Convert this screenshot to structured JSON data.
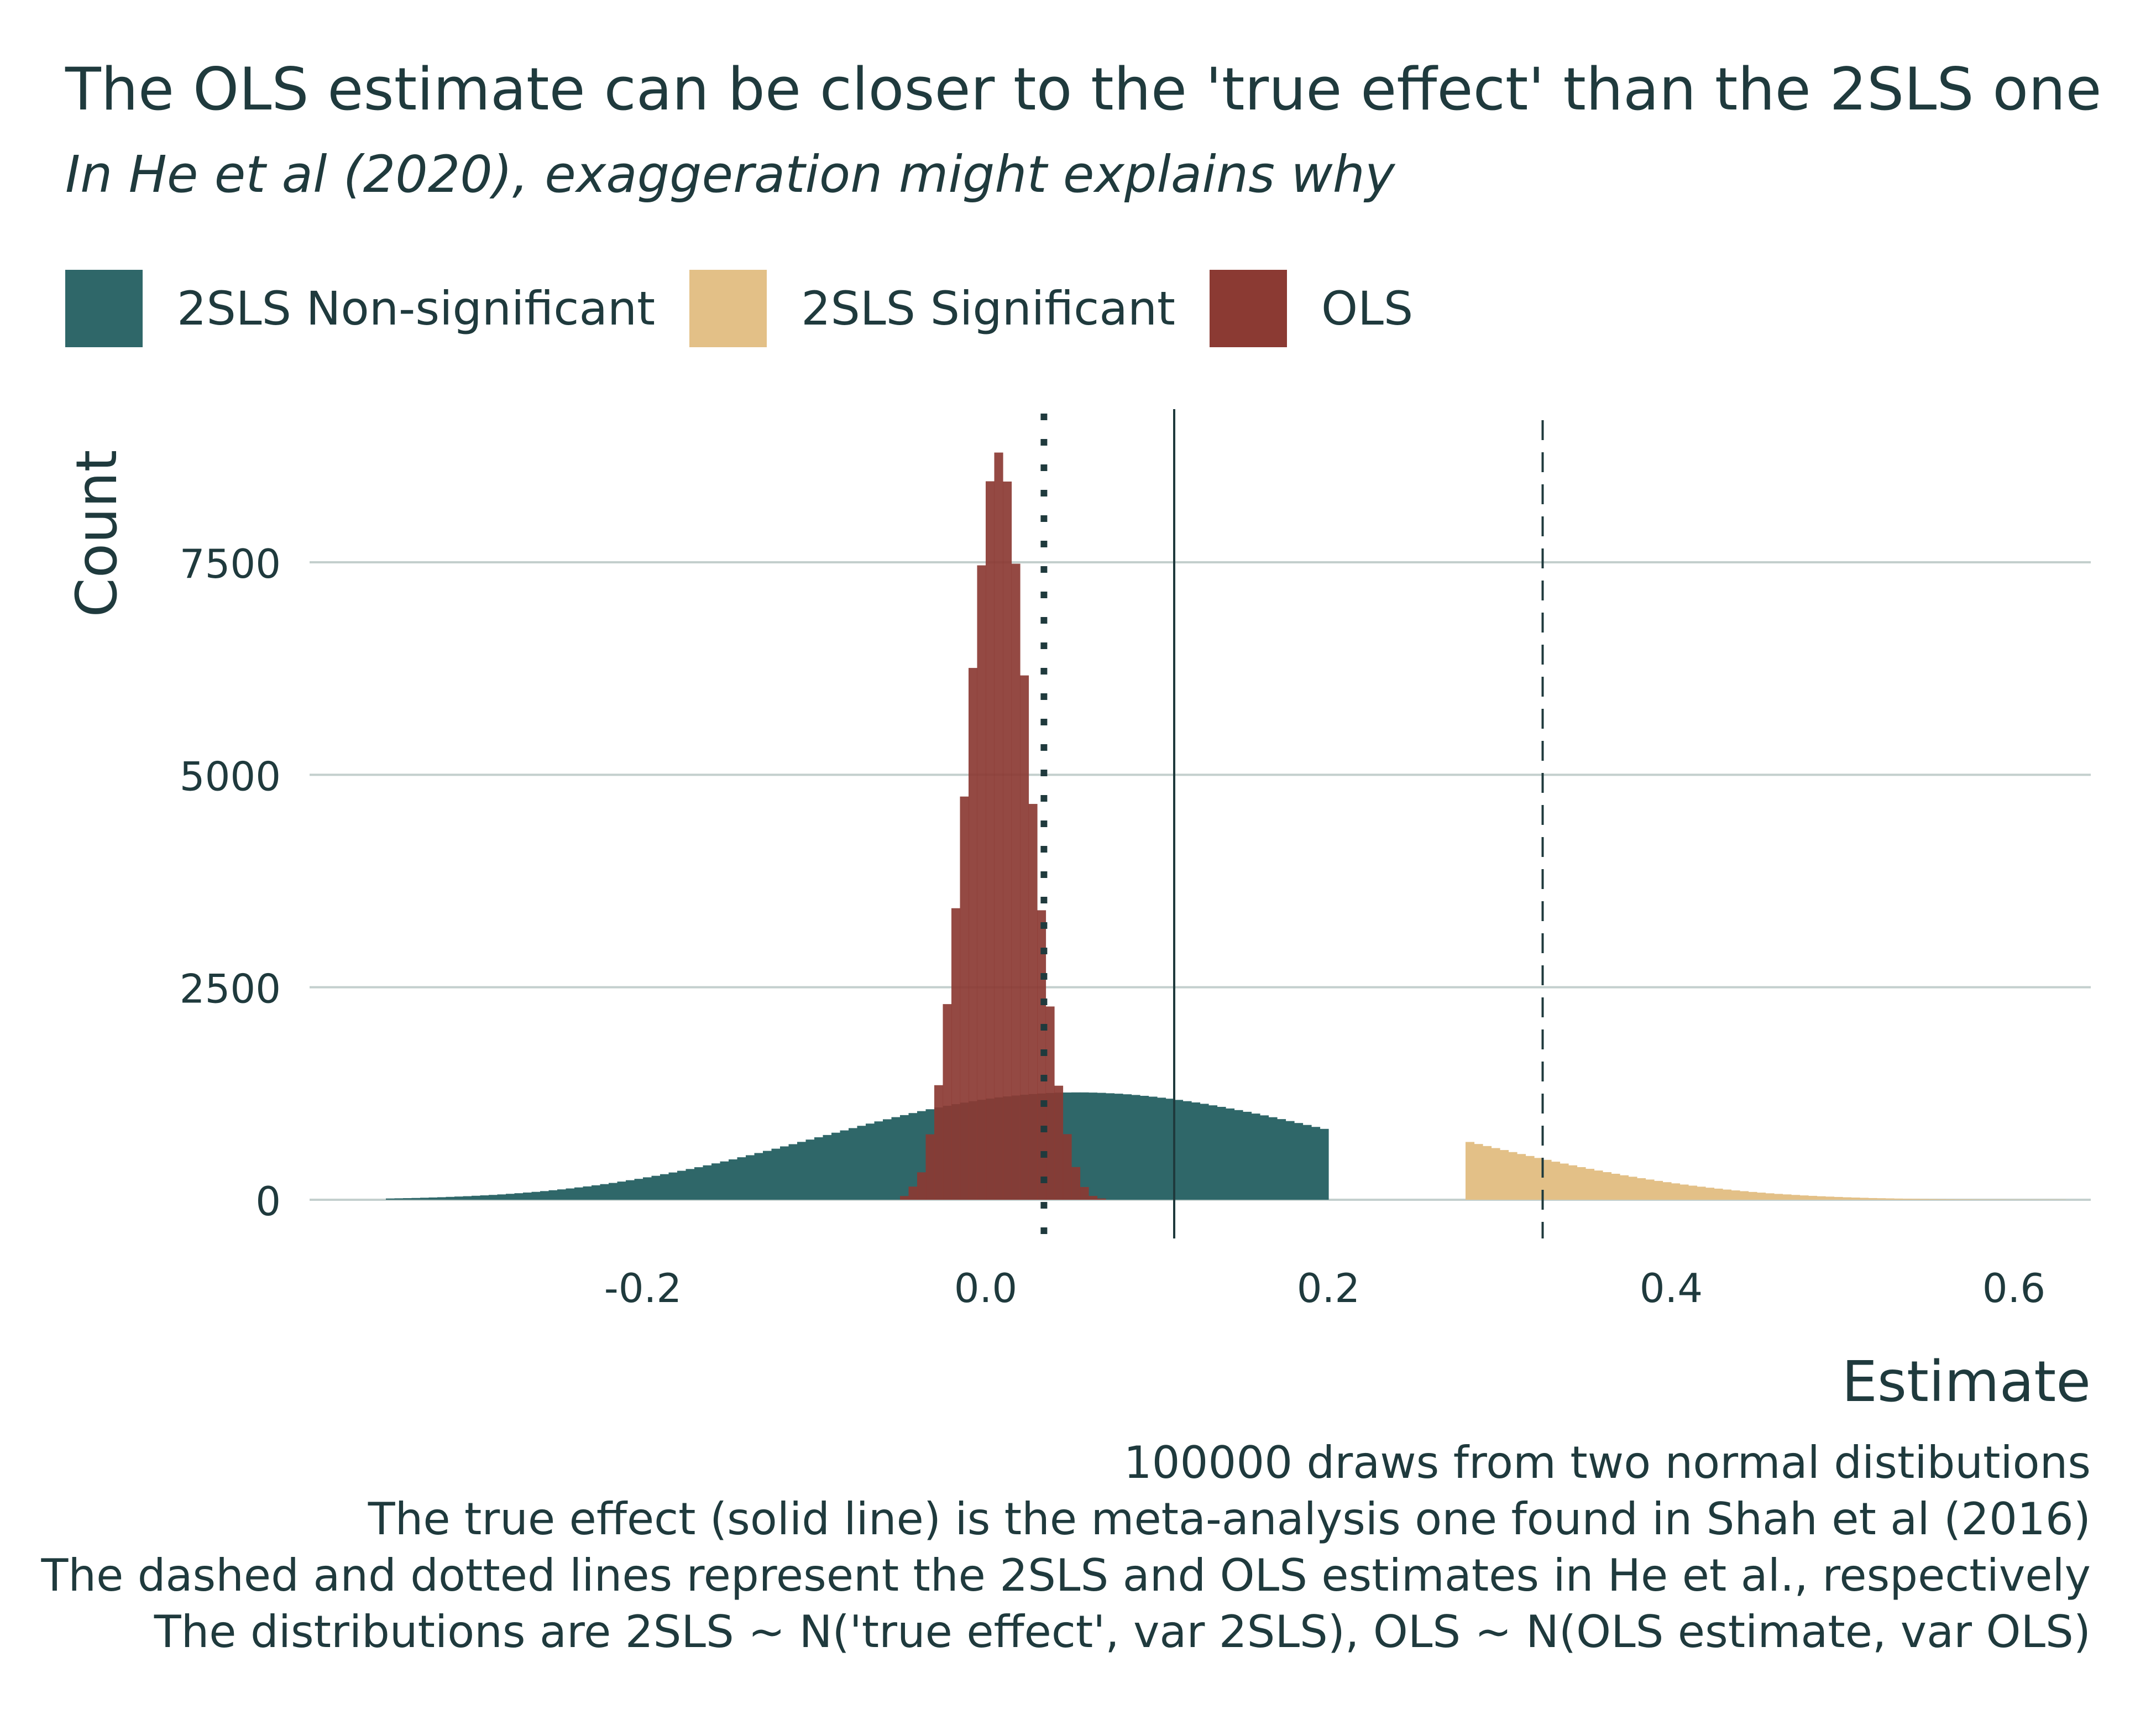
{
  "title": "The OLS estimate can be closer to the 'true effect' than the 2SLS one",
  "subtitle": "In He et al (2020), exaggeration might explains why",
  "legend": [
    {
      "label": "2SLS Non-significant",
      "color": "#2f6769"
    },
    {
      "label": "2SLS Significant",
      "color": "#e3c087"
    },
    {
      "label": "OLS",
      "color": "#8b3a33"
    }
  ],
  "caption": [
    "100000 draws from two normal distibutions",
    "The true effect (solid line) is the meta-analysis one found in Shah et al (2016)",
    "The dashed and dotted lines represent the 2SLS and OLS estimates in He et al., respectively",
    "The distributions are 2SLS ~ N('true effect', var 2SLS), OLS ~ N(OLS estimate, var OLS)"
  ],
  "chart_data": {
    "type": "bar",
    "xlabel": "Estimate",
    "ylabel": "Count",
    "xlim": [
      -0.39,
      0.65
    ],
    "ylim": [
      0,
      9500
    ],
    "xticks": [
      "-0.2",
      "0.0",
      "0.2",
      "0.4",
      "0.6"
    ],
    "xtick_values": [
      -0.2,
      0.0,
      0.2,
      0.4,
      0.6
    ],
    "yticks": [
      "0",
      "2500",
      "5000",
      "7500"
    ],
    "ytick_values": [
      0,
      2500,
      5000,
      7500
    ],
    "grid": "horizontal",
    "legend_position": "top-left",
    "vertical_lines": [
      {
        "name": "true effect",
        "x": 0.11,
        "style": "solid"
      },
      {
        "name": "2SLS estimate",
        "x": 0.325,
        "style": "dashed"
      },
      {
        "name": "OLS estimate",
        "x": 0.034,
        "style": "dotted"
      }
    ],
    "series": [
      {
        "name": "2SLS Non-significant",
        "color": "#2f6769",
        "bin_width": 0.005,
        "x_start": -0.35,
        "values": [
          15,
          17,
          19,
          21,
          24,
          27,
          30,
          34,
          38,
          42,
          47,
          52,
          57,
          63,
          70,
          77,
          85,
          93,
          102,
          112,
          122,
          133,
          145,
          157,
          170,
          184,
          198,
          214,
          230,
          246,
          264,
          282,
          301,
          321,
          341,
          362,
          383,
          405,
          428,
          451,
          475,
          500,
          524,
          550,
          575,
          601,
          628,
          654,
          681,
          708,
          735,
          762,
          789,
          816,
          843,
          870,
          896,
          922,
          947,
          972,
          996,
          1020,
          1043,
          1065,
          1086,
          1106,
          1125,
          1143,
          1160,
          1176,
          1190,
          1204,
          1216,
          1226,
          1236,
          1244,
          1250,
          1256,
          1260,
          1262,
          1263,
          1263,
          1261,
          1258,
          1253,
          1248,
          1241,
          1233,
          1223,
          1213,
          1201,
          1189,
          1175,
          1160,
          1145,
          1129,
          1111,
          1093,
          1074,
          1055,
          1035,
          1014,
          993,
          971,
          949,
          926,
          903,
          880,
          857,
          834
        ]
      },
      {
        "name": "2SLS Significant",
        "color": "#e3c087",
        "bin_width": 0.005,
        "x_start": 0.28,
        "values": [
          680,
          656,
          632,
          608,
          585,
          561,
          538,
          515,
          492,
          470,
          448,
          426,
          405,
          384,
          364,
          344,
          325,
          306,
          288,
          271,
          254,
          238,
          222,
          207,
          193,
          179,
          166,
          154,
          142,
          131,
          120,
          110,
          101,
          92,
          84,
          76,
          69,
          63,
          57,
          51,
          46,
          41,
          37,
          33,
          29,
          26,
          23,
          20,
          18,
          16,
          14,
          12,
          11,
          9,
          8,
          7,
          6,
          5,
          5,
          4,
          3,
          3,
          3,
          2,
          2,
          2,
          2,
          2,
          2,
          2
        ]
      },
      {
        "name": "OLS",
        "color": "#8b3a33",
        "bin_width": 0.005,
        "x_start": -0.05,
        "values": [
          44,
          155,
          323,
          770,
          1348,
          2302,
          3430,
          4744,
          6257,
          7464,
          8453,
          8791,
          8450,
          7483,
          6169,
          4657,
          3406,
          2274,
          1342,
          772,
          385,
          150,
          45,
          15
        ]
      }
    ]
  }
}
